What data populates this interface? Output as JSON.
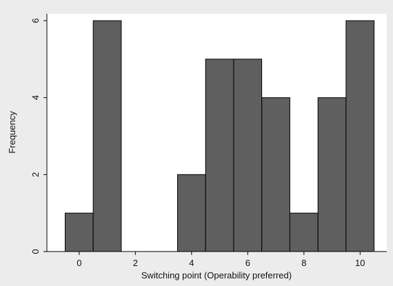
{
  "chart_data": {
    "type": "bar",
    "xlabel": "Switching point (Operability preferred)",
    "ylabel": "Frequency",
    "x": [
      0,
      1,
      2,
      3,
      4,
      5,
      6,
      7,
      8,
      9,
      10
    ],
    "values": [
      1,
      6,
      0,
      0,
      2,
      5,
      5,
      4,
      1,
      4,
      6
    ],
    "xlim": [
      -1.15,
      10.95
    ],
    "ylim": [
      0,
      6
    ],
    "x_ticks": [
      0,
      2,
      4,
      6,
      8,
      10
    ],
    "y_ticks": [
      0,
      2,
      4,
      6
    ],
    "grid": false,
    "colors": {
      "background": "#ececec",
      "plot_area": "#ffffff",
      "bar_fill": "#5f5f5f",
      "bar_edge": "#000000"
    }
  }
}
